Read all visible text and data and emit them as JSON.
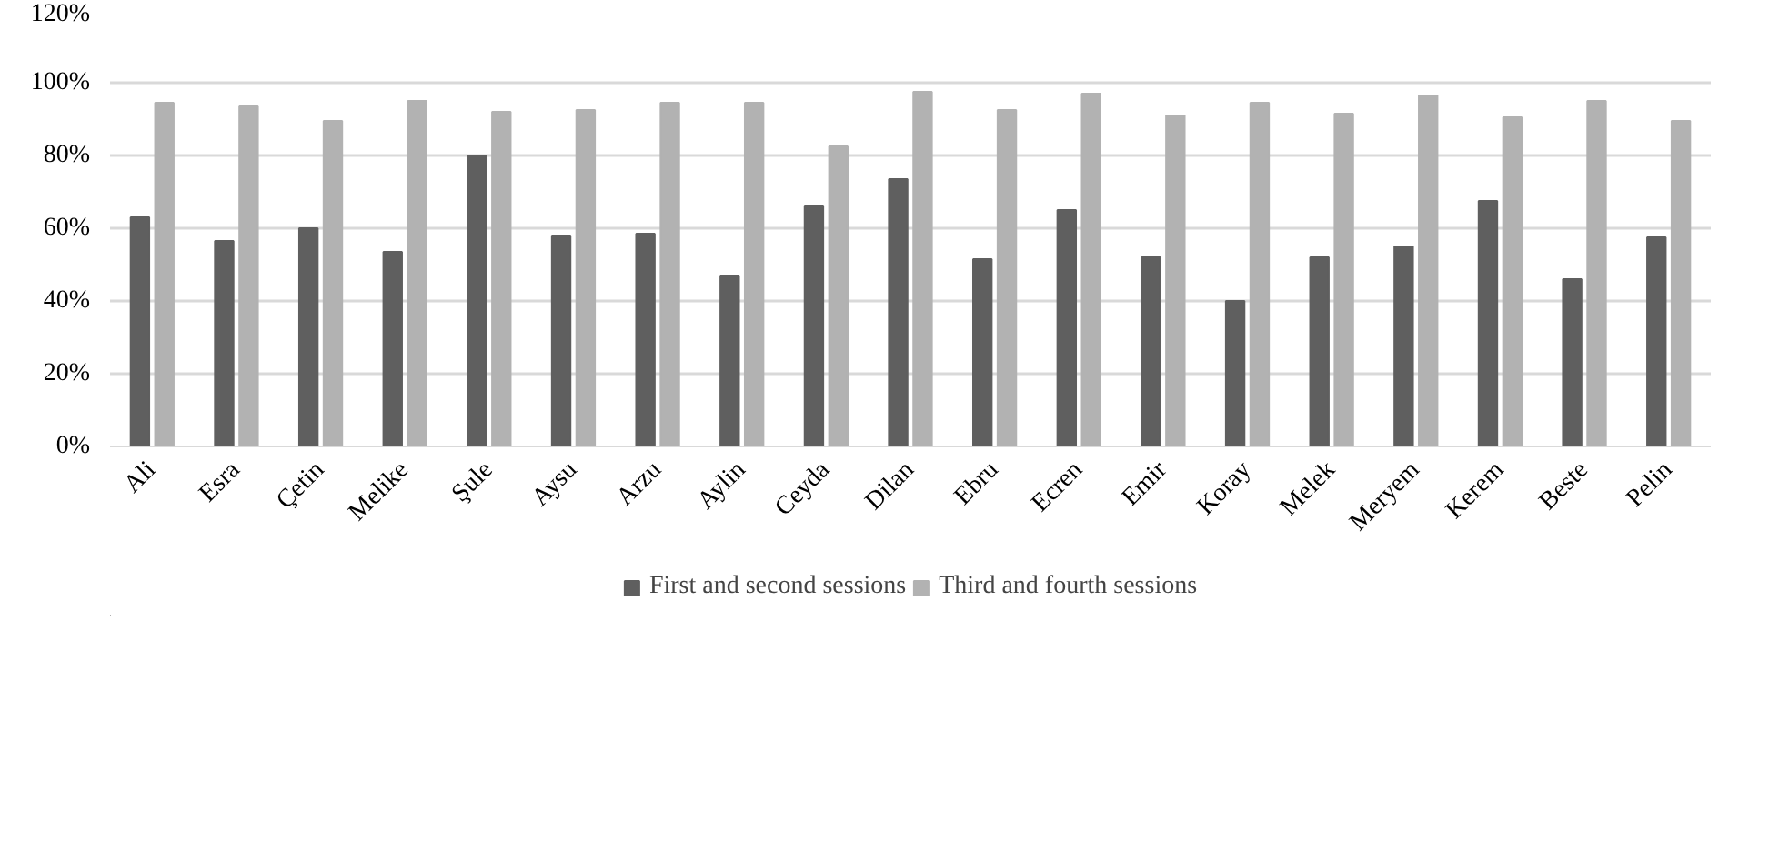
{
  "chart_data": {
    "type": "bar",
    "categories": [
      "Ali",
      "Esra",
      "Çetin",
      "Melike",
      "Şule",
      "Aysu",
      "Arzu",
      "Aylin",
      "Ceyda",
      "Dilan",
      "Ebru",
      "Ecren",
      "Emir",
      "Koray",
      "Melek",
      "Meryem",
      "Kerem",
      "Beste",
      "Pelin"
    ],
    "series": [
      {
        "name": "First and second sessions",
        "color": "#5f5f5f",
        "values": [
          63,
          56.5,
          60,
          53.5,
          80,
          58,
          58.5,
          47,
          66,
          73.5,
          51.5,
          65,
          52,
          40,
          52,
          55,
          67.5,
          46,
          57.5
        ]
      },
      {
        "name": "Third and fourth sessions",
        "color": "#b2b2b2",
        "values": [
          94.5,
          93.5,
          89.5,
          95,
          92,
          92.5,
          94.5,
          94.5,
          82.5,
          97.5,
          92.5,
          97,
          91,
          94.5,
          91.5,
          96.5,
          90.5,
          95,
          89.5
        ]
      }
    ],
    "ylim": [
      0,
      120
    ],
    "yticks": [
      {
        "value": 0,
        "label": "0%"
      },
      {
        "value": 20,
        "label": "20%"
      },
      {
        "value": 40,
        "label": "40%"
      },
      {
        "value": 60,
        "label": "60%"
      },
      {
        "value": 80,
        "label": "80%"
      },
      {
        "value": 100,
        "label": "100%"
      },
      {
        "value": 120,
        "label": "120%"
      }
    ],
    "grid": "y",
    "legend": "bottom"
  }
}
